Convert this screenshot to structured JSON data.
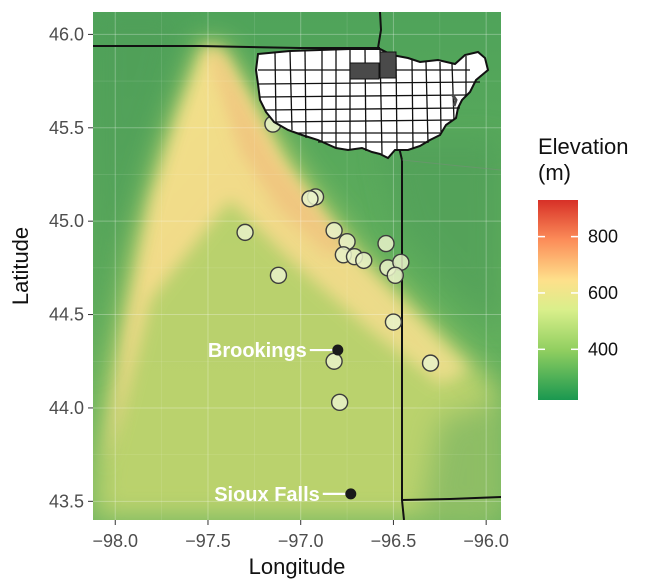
{
  "chart_data": {
    "type": "scatter",
    "title": "",
    "xlabel": "Longitude",
    "ylabel": "Latitude",
    "xlim": [
      -98.12,
      -95.92
    ],
    "ylim": [
      43.4,
      46.12
    ],
    "x_ticks": [
      {
        "value": -98.0,
        "label": "−98.0"
      },
      {
        "value": -97.5,
        "label": "−97.5"
      },
      {
        "value": -97.0,
        "label": "−97.0"
      },
      {
        "value": -96.5,
        "label": "−96.5"
      },
      {
        "value": -96.0,
        "label": "−96.0"
      }
    ],
    "y_ticks": [
      {
        "value": 43.5,
        "label": "43.5"
      },
      {
        "value": 44.0,
        "label": "44.0"
      },
      {
        "value": 44.5,
        "label": "44.5"
      },
      {
        "value": 45.0,
        "label": "45.0"
      },
      {
        "value": 45.5,
        "label": "45.5"
      },
      {
        "value": 46.0,
        "label": "46.0"
      }
    ],
    "grid": true,
    "background": "elevation raster (green low, yellow/orange high along central ridge)",
    "legend": {
      "title": "Elevation\n(m)",
      "position": "right",
      "type": "color-bar",
      "range": [
        220,
        930
      ],
      "ticks": [
        {
          "value": 400,
          "label": "400"
        },
        {
          "value": 600,
          "label": "600"
        },
        {
          "value": 800,
          "label": "800"
        }
      ],
      "colors": [
        "#1a9850",
        "#91cf60",
        "#d9ef8b",
        "#fee08b",
        "#fc8d59",
        "#d73027"
      ]
    },
    "sites": [
      {
        "x": -97.15,
        "y": 45.52
      },
      {
        "x": -96.92,
        "y": 45.13
      },
      {
        "x": -96.95,
        "y": 45.12
      },
      {
        "x": -97.3,
        "y": 44.94
      },
      {
        "x": -96.82,
        "y": 44.95
      },
      {
        "x": -96.75,
        "y": 44.89
      },
      {
        "x": -96.54,
        "y": 44.88
      },
      {
        "x": -96.77,
        "y": 44.82
      },
      {
        "x": -96.71,
        "y": 44.81
      },
      {
        "x": -96.66,
        "y": 44.79
      },
      {
        "x": -96.53,
        "y": 44.75
      },
      {
        "x": -96.46,
        "y": 44.78
      },
      {
        "x": -96.49,
        "y": 44.71
      },
      {
        "x": -97.12,
        "y": 44.71
      },
      {
        "x": -96.5,
        "y": 44.46
      },
      {
        "x": -96.3,
        "y": 44.24
      },
      {
        "x": -96.82,
        "y": 44.25
      },
      {
        "x": -96.79,
        "y": 44.03
      }
    ],
    "cities": [
      {
        "name": "Brookings",
        "x": -96.8,
        "y": 44.31
      },
      {
        "name": "Sioux Falls",
        "x": -96.73,
        "y": 43.54
      }
    ],
    "inset": {
      "description": "USA outline",
      "highlighted": "South Dakota",
      "highlight_color": "#4a4a4a"
    }
  }
}
